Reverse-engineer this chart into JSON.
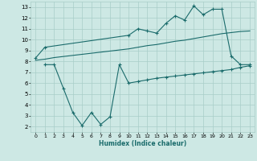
{
  "xlabel": "Humidex (Indice chaleur)",
  "xlim": [
    -0.5,
    23.5
  ],
  "ylim": [
    1.5,
    13.5
  ],
  "yticks": [
    2,
    3,
    4,
    5,
    6,
    7,
    8,
    9,
    10,
    11,
    12,
    13
  ],
  "xticks": [
    0,
    1,
    2,
    3,
    4,
    5,
    6,
    7,
    8,
    9,
    10,
    11,
    12,
    13,
    14,
    15,
    16,
    17,
    18,
    19,
    20,
    21,
    22,
    23
  ],
  "bg_color": "#cde8e4",
  "grid_color": "#a8cdc8",
  "line_color": "#1a6b6b",
  "line1_x": [
    0,
    1,
    10,
    11,
    12,
    13,
    14,
    15,
    16,
    17,
    18,
    19,
    20,
    21,
    22,
    23
  ],
  "line1_y": [
    8.3,
    9.3,
    10.4,
    11.0,
    10.8,
    10.6,
    11.5,
    12.2,
    11.8,
    13.1,
    12.3,
    12.8,
    12.8,
    8.5,
    7.7,
    7.7
  ],
  "line2_x": [
    0,
    1,
    2,
    3,
    4,
    5,
    6,
    7,
    8,
    9,
    10,
    11,
    12,
    13,
    14,
    15,
    16,
    17,
    18,
    19,
    20,
    21,
    22,
    23
  ],
  "line2_y": [
    8.1,
    8.2,
    8.35,
    8.45,
    8.55,
    8.65,
    8.75,
    8.85,
    8.95,
    9.05,
    9.15,
    9.3,
    9.45,
    9.55,
    9.7,
    9.85,
    9.95,
    10.1,
    10.25,
    10.4,
    10.55,
    10.65,
    10.75,
    10.8
  ],
  "line3_x": [
    1,
    2,
    3,
    4,
    5,
    6,
    7,
    8,
    9,
    10,
    11,
    12,
    13,
    14,
    15,
    16,
    17,
    18,
    19,
    20,
    21,
    22,
    23
  ],
  "line3_y": [
    7.7,
    7.7,
    5.5,
    3.3,
    2.1,
    3.3,
    2.2,
    2.9,
    7.7,
    6.0,
    6.15,
    6.3,
    6.45,
    6.55,
    6.65,
    6.75,
    6.85,
    6.95,
    7.05,
    7.15,
    7.25,
    7.45,
    7.6
  ]
}
